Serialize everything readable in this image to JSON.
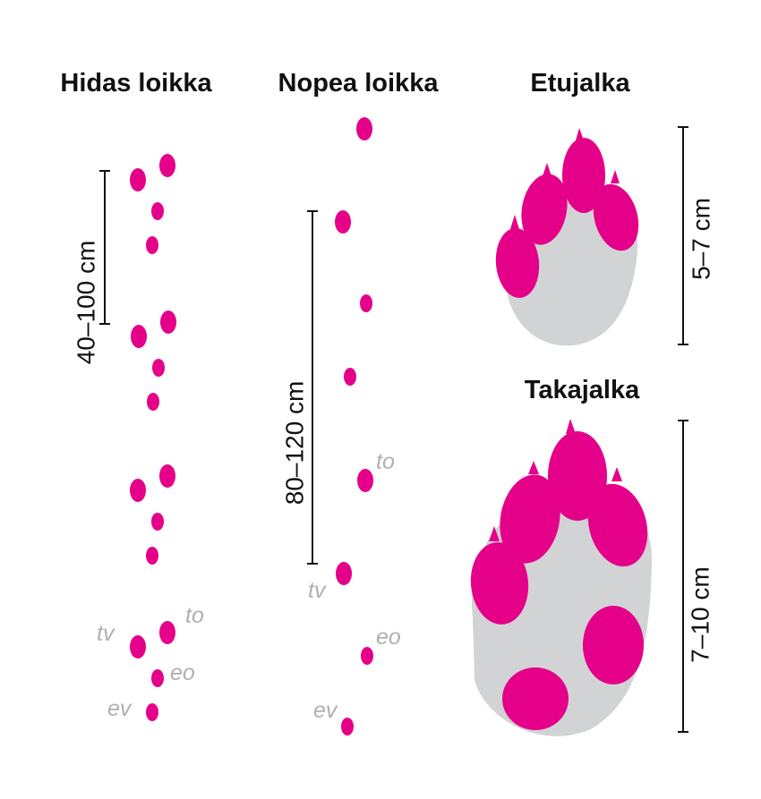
{
  "columns": [
    {
      "title": "Hidas loikka",
      "measure": "40–100 cm",
      "labels": {
        "tv": "tv",
        "to": "to",
        "eo": "eo",
        "ev": "ev"
      }
    },
    {
      "title": "Nopea loikka",
      "measure": "80–120 cm",
      "labels": {
        "to": "to",
        "tv": "tv",
        "eo": "eo",
        "ev": "ev"
      }
    }
  ],
  "paws": [
    {
      "title": "Etujalka",
      "measure": "5–7 cm"
    },
    {
      "title": "Takajalka",
      "measure": "7–10 cm"
    }
  ]
}
